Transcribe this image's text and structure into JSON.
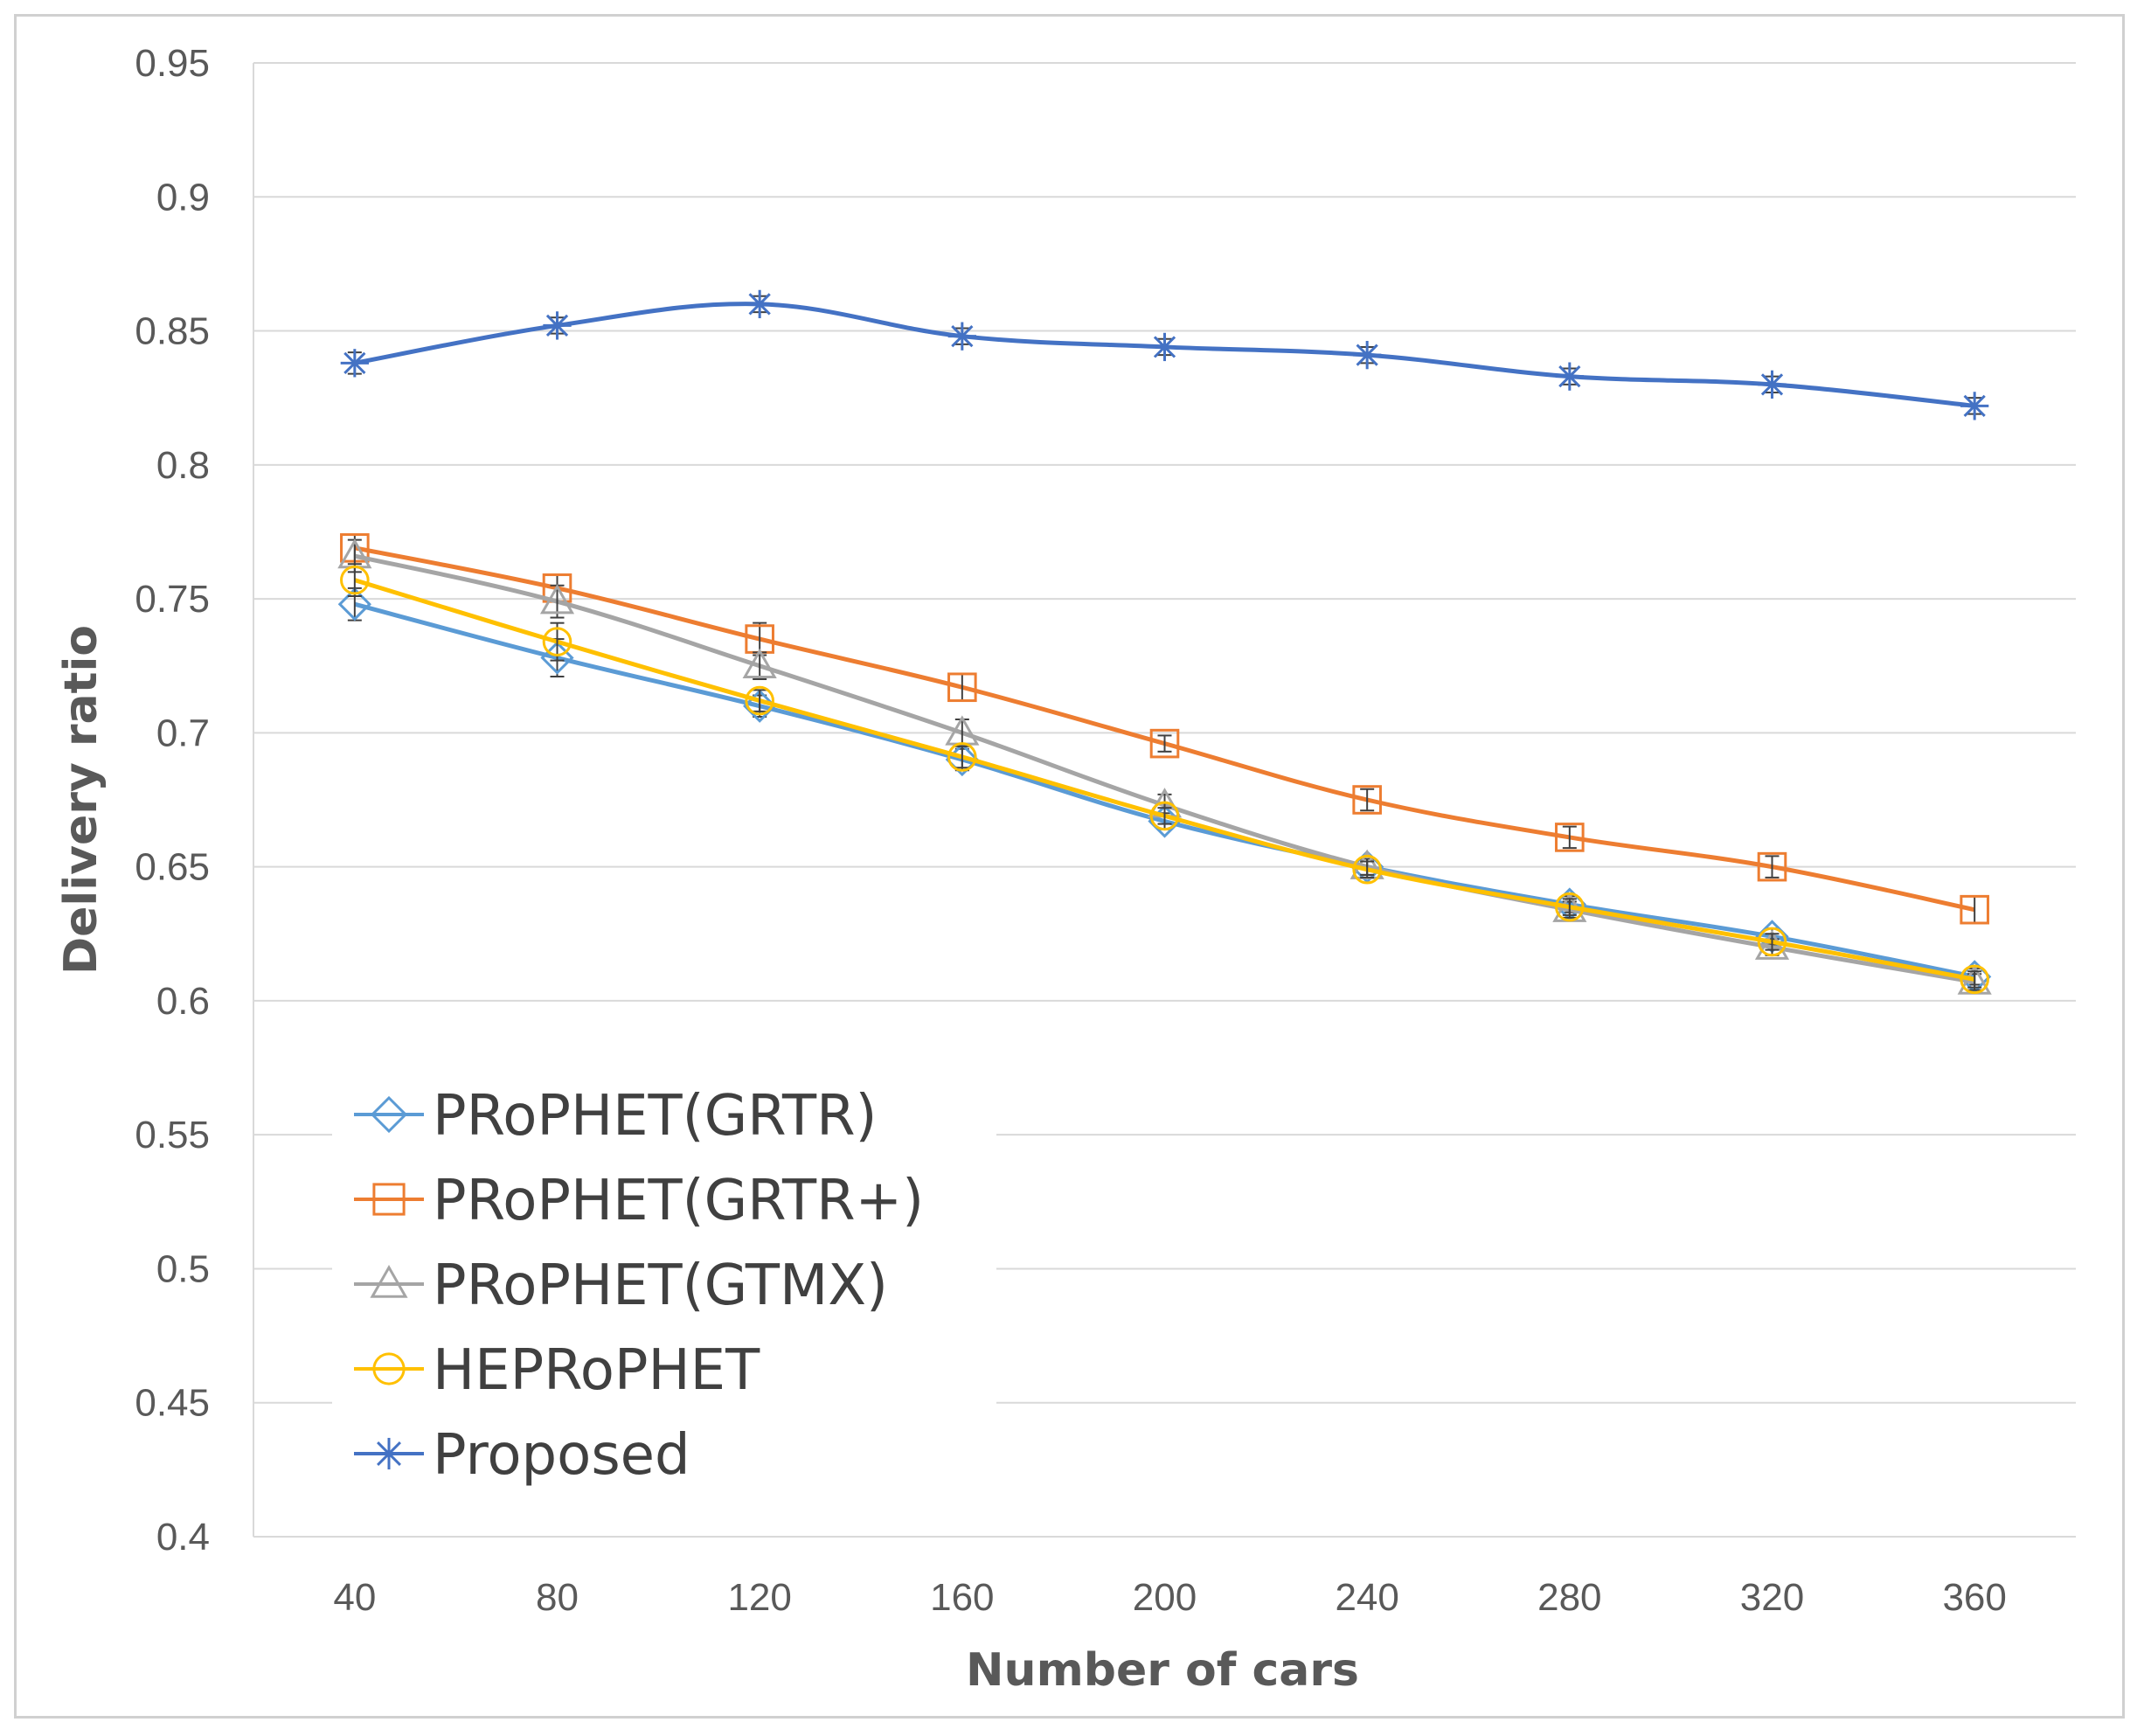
{
  "chart_data": {
    "type": "line",
    "title": "",
    "xlabel": "Number of cars",
    "ylabel": "Delivery ratio",
    "ylim": [
      0.4,
      0.95
    ],
    "ytick_step": 0.05,
    "yticks": [
      "0.4",
      "0.45",
      "0.5",
      "0.55",
      "0.6",
      "0.65",
      "0.7",
      "0.75",
      "0.8",
      "0.85",
      "0.9",
      "0.95"
    ],
    "grid": true,
    "legend_position": "bottom-left",
    "categories": [
      "40",
      "80",
      "120",
      "160",
      "200",
      "240",
      "280",
      "320",
      "360"
    ],
    "series": [
      {
        "name": "PRoPHET(GRTR)",
        "color": "#5B9BD5",
        "marker": "diamond",
        "values": [
          0.748,
          0.728,
          0.71,
          0.69,
          0.667,
          0.65,
          0.636,
          0.624,
          0.609
        ],
        "error": [
          0.006,
          0.007,
          0.004,
          0.004,
          0.003,
          0.003,
          0.003,
          0.003,
          0.003
        ]
      },
      {
        "name": "PRoPHET(GRTR+)",
        "color": "#ED7D31",
        "marker": "square",
        "values": [
          0.769,
          0.754,
          0.735,
          0.717,
          0.696,
          0.675,
          0.661,
          0.65,
          0.634
        ],
        "error": [
          0.005,
          0.005,
          0.006,
          0.005,
          0.003,
          0.004,
          0.004,
          0.004,
          0.005
        ]
      },
      {
        "name": "PRoPHET(GTMX)",
        "color": "#A5A5A5",
        "marker": "triangle",
        "values": [
          0.766,
          0.749,
          0.725,
          0.7,
          0.673,
          0.65,
          0.634,
          0.62,
          0.607
        ],
        "error": [
          0.006,
          0.006,
          0.005,
          0.005,
          0.004,
          0.003,
          0.003,
          0.003,
          0.003
        ]
      },
      {
        "name": "HEPRoPHET",
        "color": "#FFC000",
        "marker": "circle",
        "values": [
          0.757,
          0.734,
          0.712,
          0.691,
          0.669,
          0.649,
          0.635,
          0.622,
          0.608
        ],
        "error": [
          0.006,
          0.007,
          0.004,
          0.004,
          0.003,
          0.003,
          0.003,
          0.003,
          0.003
        ]
      },
      {
        "name": "Proposed",
        "color": "#4472C4",
        "marker": "star",
        "values": [
          0.838,
          0.852,
          0.86,
          0.848,
          0.844,
          0.841,
          0.833,
          0.83,
          0.822
        ],
        "error": [
          0.004,
          0.003,
          0.003,
          0.003,
          0.003,
          0.003,
          0.003,
          0.003,
          0.003
        ]
      }
    ]
  }
}
